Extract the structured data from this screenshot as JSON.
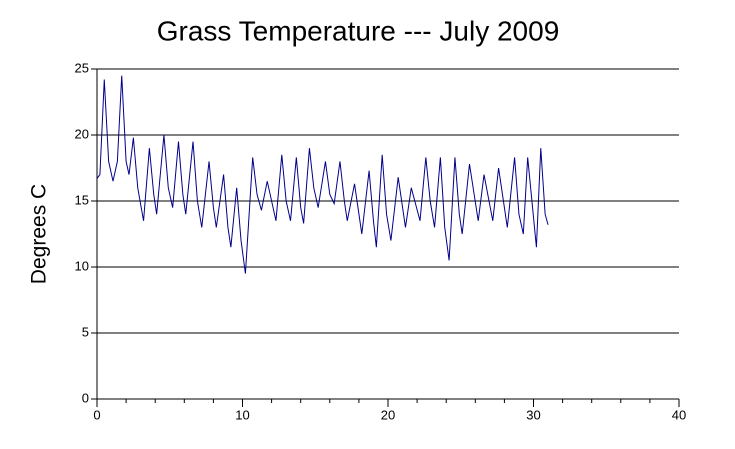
{
  "chart_data": {
    "type": "line",
    "title": "Grass Temperature --- July 2009",
    "y_label": "Degrees C",
    "xlim": [
      0,
      40
    ],
    "xticks": [
      0,
      10,
      20,
      30,
      40
    ],
    "xminor_ticks": [
      2,
      4,
      6,
      8,
      12,
      14,
      16,
      18,
      22,
      24,
      26,
      28,
      32,
      34,
      36,
      38
    ],
    "ylim": [
      0,
      25
    ],
    "yticks": [
      0,
      5,
      10,
      15,
      20,
      25
    ],
    "grid": true,
    "series": [
      {
        "name": "Grass Temperature",
        "color": "#00008b",
        "x": [
          0,
          0.2,
          0.5,
          0.8,
          1.1,
          1.4,
          1.7,
          2.0,
          2.2,
          2.5,
          2.8,
          3.2,
          3.6,
          3.9,
          4.1,
          4.6,
          4.9,
          5.2,
          5.6,
          5.9,
          6.1,
          6.6,
          6.9,
          7.2,
          7.7,
          8.0,
          8.2,
          8.7,
          9.0,
          9.2,
          9.6,
          9.9,
          10.2,
          10.7,
          11.0,
          11.3,
          11.7,
          12.3,
          12.7,
          13.0,
          13.3,
          13.7,
          14.0,
          14.2,
          14.6,
          14.9,
          15.2,
          15.7,
          16.0,
          16.3,
          16.7,
          17.0,
          17.2,
          17.7,
          18.2,
          18.7,
          19.0,
          19.2,
          19.6,
          19.9,
          20.2,
          20.7,
          21.2,
          21.6,
          22.2,
          22.6,
          22.9,
          23.2,
          23.6,
          23.9,
          24.2,
          24.6,
          24.9,
          25.1,
          25.6,
          26.2,
          26.6,
          27.2,
          27.6,
          28.2,
          28.7,
          29.0,
          29.3,
          29.6,
          30.2,
          30.5,
          30.8,
          31.0
        ],
        "values": [
          16.7,
          17,
          24.2,
          18,
          16.5,
          18,
          24.5,
          18,
          17,
          19.8,
          16,
          13.5,
          19,
          15.5,
          14,
          20,
          16,
          14.5,
          19.5,
          15.5,
          14,
          19.5,
          15,
          13,
          18,
          14.5,
          13,
          17,
          13,
          11.5,
          16,
          12,
          9.5,
          18.3,
          15.5,
          14.3,
          16.5,
          13.5,
          18.5,
          15,
          13.5,
          18.3,
          14.5,
          13.3,
          19,
          16,
          14.5,
          18,
          15.5,
          14.8,
          18,
          15,
          13.5,
          16.3,
          12.5,
          17.3,
          13.5,
          11.5,
          18.5,
          14,
          12,
          16.8,
          13,
          16,
          13.5,
          18.3,
          15,
          13,
          18.3,
          13,
          10.5,
          18.3,
          14,
          12.5,
          17.8,
          13.5,
          17,
          13.5,
          17.5,
          13,
          18.3,
          14,
          12.5,
          18.3,
          11.5,
          19,
          14,
          13.2
        ]
      }
    ]
  }
}
